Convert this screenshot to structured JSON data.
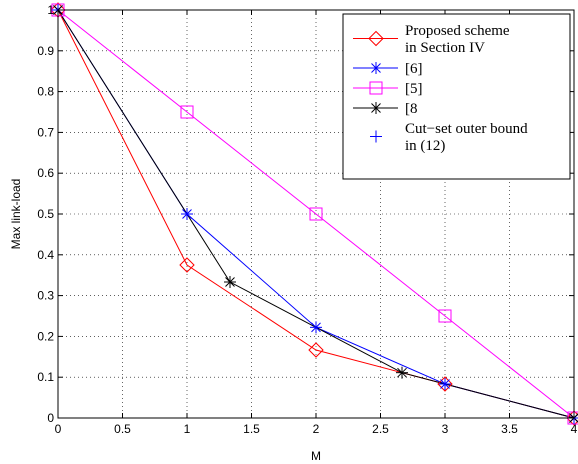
{
  "chart_data": {
    "type": "line",
    "xlabel": "M",
    "ylabel": "Max link-load",
    "xlim": [
      0,
      4
    ],
    "ylim": [
      0,
      1
    ],
    "xticks": [
      0,
      0.5,
      1,
      1.5,
      2,
      2.5,
      3,
      3.5,
      4
    ],
    "xtick_labels": [
      "0",
      "0.5",
      "1",
      "1.5",
      "2",
      "2.5",
      "3",
      "3.5",
      "4"
    ],
    "yticks": [
      0,
      0.1,
      0.2,
      0.3,
      0.4,
      0.5,
      0.6,
      0.7,
      0.8,
      0.9,
      1
    ],
    "ytick_labels": [
      "0",
      "0.1",
      "0.2",
      "0.3",
      "0.4",
      "0.5",
      "0.6",
      "0.7",
      "0.8",
      "0.9",
      "1"
    ],
    "grid": true,
    "legend_position": "top-right",
    "series": [
      {
        "name": "Proposed scheme in Section IV",
        "legend_lines": [
          "Proposed scheme",
          "in Section IV"
        ],
        "color": "#ff0000",
        "marker": "diamond",
        "x": [
          0,
          1,
          2,
          3,
          4
        ],
        "y": [
          1,
          0.375,
          0.1667,
          0.0833,
          0
        ]
      },
      {
        "name": "[6]",
        "legend_lines": [
          "[6]"
        ],
        "color": "#0000ff",
        "marker": "asterisk",
        "x": [
          0,
          1,
          2,
          3,
          4
        ],
        "y": [
          1,
          0.5,
          0.2222,
          0.0833,
          0
        ]
      },
      {
        "name": "[5]",
        "legend_lines": [
          "[5]"
        ],
        "color": "#ff00ff",
        "marker": "square",
        "x": [
          0,
          1,
          2,
          3,
          4
        ],
        "y": [
          1,
          0.75,
          0.5,
          0.25,
          0
        ]
      },
      {
        "name": "[8",
        "legend_lines": [
          "[8"
        ],
        "color": "#000000",
        "marker": "asterisk",
        "x": [
          0,
          1.3333,
          2.6667,
          4
        ],
        "y": [
          1,
          0.3333,
          0.1111,
          0
        ]
      },
      {
        "name": "Cut-set outer bound in (12)",
        "legend_lines": [
          "Cut−set outer bound",
          "in (12)"
        ],
        "color": "#0000ff",
        "marker": "plus",
        "x": [
          0,
          4
        ],
        "y": [
          1,
          0
        ],
        "no_line": true
      }
    ]
  }
}
